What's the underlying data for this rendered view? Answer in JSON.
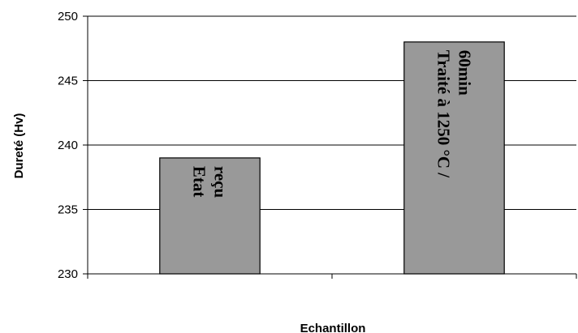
{
  "chart_data": {
    "type": "bar",
    "categories": [
      "Etat reçu",
      "Traité à 1250 °C / 60min"
    ],
    "category_label_lines": [
      [
        "Etat",
        "reçu"
      ],
      [
        "Traité à 1250 °C /",
        "60min"
      ]
    ],
    "values": [
      239,
      248
    ],
    "xlabel": "Echantillon",
    "ylabel": "Dureté (Hv)",
    "ylim": [
      230,
      250
    ],
    "yticks": [
      "230",
      "235",
      "240",
      "245",
      "250"
    ],
    "grid": "horizontal",
    "legend": "none",
    "bar_color": "#999999",
    "bar_edge_color": "#000000",
    "grid_color": "#000000"
  }
}
